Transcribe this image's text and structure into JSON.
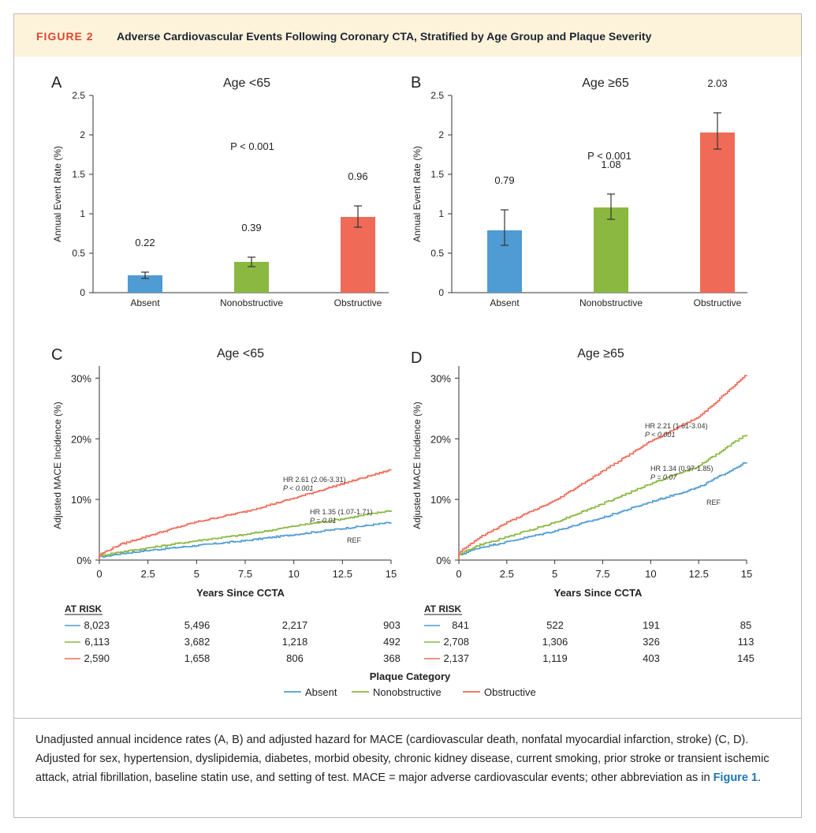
{
  "figure": {
    "label": "FIGURE 2",
    "title": "Adverse Cardiovascular Events Following Coronary CTA, Stratified by Age Group and Plaque Severity"
  },
  "caption": {
    "text": "Unadjusted annual incidence rates (A, B) and adjusted hazard for MACE (cardiovascular death, nonfatal myocardial infarction, stroke) (C, D). Adjusted for sex, hypertension, dyslipidemia, diabetes, morbid obesity, chronic kidney disease, current smoking, prior stroke or transient ischemic attack, atrial fibrillation, baseline statin use, and setting of test. MACE = major adverse cardiovascular events; other abbreviation as in ",
    "link": "Figure 1",
    "end": "."
  },
  "colors": {
    "absent": "#4f9bd3",
    "nonobstructive": "#8ab840",
    "obstructive": "#ef6a57"
  },
  "chart_data": [
    {
      "panel": "A",
      "type": "bar",
      "title": "Age <65",
      "ylabel": "Annual Event Rate (%)",
      "ylim": [
        0,
        2.5
      ],
      "yticks": [
        "0",
        "0.5",
        "1",
        "1.5",
        "2",
        "2.5"
      ],
      "categories": [
        "Absent",
        "Nonobstructive",
        "Obstructive"
      ],
      "values": [
        0.22,
        0.39,
        0.96
      ],
      "value_labels": [
        "0.22",
        "0.39",
        "0.96"
      ],
      "ci": [
        [
          0.18,
          0.26
        ],
        [
          0.33,
          0.45
        ],
        [
          0.83,
          1.1
        ]
      ],
      "pvalue": "P < 0.001"
    },
    {
      "panel": "B",
      "type": "bar",
      "title": "Age ≥65",
      "ylabel": "Annual Event Rate (%)",
      "ylim": [
        0,
        2.5
      ],
      "yticks": [
        "0",
        "0.5",
        "1",
        "1.5",
        "2",
        "2.5"
      ],
      "categories": [
        "Absent",
        "Nonobstructive",
        "Obstructive"
      ],
      "values": [
        0.79,
        1.08,
        2.03
      ],
      "value_labels": [
        "0.79",
        "1.08",
        "2.03"
      ],
      "ci": [
        [
          0.6,
          1.05
        ],
        [
          0.93,
          1.25
        ],
        [
          1.82,
          2.28
        ]
      ],
      "pvalue": "P < 0.001"
    },
    {
      "panel": "C",
      "type": "line",
      "title": "Age <65",
      "xlabel": "Years Since CCTA",
      "ylabel": "Adjusted MACE Incidence (%)",
      "xlim": [
        0,
        15
      ],
      "ylim": [
        0,
        32
      ],
      "xticks": [
        "0",
        "2.5",
        "5",
        "7.5",
        "10",
        "12.5",
        "15"
      ],
      "yticks": [
        "0%",
        "10%",
        "20%",
        "30%"
      ],
      "x": [
        0,
        1,
        2.5,
        5,
        7.5,
        10,
        12.5,
        15
      ],
      "series": [
        {
          "name": "Absent",
          "values": [
            0.5,
            1.0,
            1.6,
            2.4,
            3.2,
            4.2,
            5.2,
            6.2
          ],
          "annotation": [
            "REF"
          ]
        },
        {
          "name": "Nonobstructive",
          "values": [
            0.7,
            1.3,
            2.0,
            3.2,
            4.2,
            5.6,
            6.8,
            8.2
          ],
          "annotation": [
            "HR 1.35 (1.07-1.71)",
            "P = 0.01"
          ]
        },
        {
          "name": "Obstructive",
          "values": [
            0.9,
            2.5,
            4.0,
            6.3,
            8.0,
            10.2,
            12.6,
            14.9
          ],
          "annotation": [
            "HR 2.61 (2.06-3.31)",
            "P < 0.001"
          ]
        }
      ],
      "at_risk": {
        "header": "AT RISK",
        "rows": [
          {
            "name": "Absent",
            "values": [
              "8,023",
              "5,496",
              "2,217",
              "903"
            ]
          },
          {
            "name": "Nonobstructive",
            "values": [
              "6,113",
              "3,682",
              "1,218",
              "492"
            ]
          },
          {
            "name": "Obstructive",
            "values": [
              "2,590",
              "1,658",
              "806",
              "368"
            ]
          }
        ]
      }
    },
    {
      "panel": "D",
      "type": "line",
      "title": "Age ≥65",
      "xlabel": "Years Since CCTA",
      "ylabel": "Adjusted MACE Incidence (%)",
      "xlim": [
        0,
        15
      ],
      "ylim": [
        0,
        32
      ],
      "xticks": [
        "0",
        "2.5",
        "5",
        "7.5",
        "10",
        "12.5",
        "15"
      ],
      "yticks": [
        "0%",
        "10%",
        "20%",
        "30%"
      ],
      "x": [
        0,
        1,
        2.5,
        5,
        7.5,
        10,
        12.5,
        15
      ],
      "series": [
        {
          "name": "Absent",
          "values": [
            0.8,
            2.0,
            3.0,
            4.8,
            7.0,
            9.6,
            12.0,
            16.2
          ],
          "annotation": [
            "REF"
          ]
        },
        {
          "name": "Nonobstructive",
          "values": [
            1.0,
            2.4,
            3.8,
            6.2,
            9.3,
            12.6,
            15.5,
            20.8
          ],
          "annotation": [
            "HR 1.34 (0.97-1.85)",
            "P = 0.07"
          ]
        },
        {
          "name": "Obstructive",
          "values": [
            1.3,
            3.6,
            6.2,
            9.8,
            14.7,
            19.6,
            23.6,
            30.6
          ],
          "annotation": [
            "HR 2.21 (1.61-3.04)",
            "P < 0.001"
          ]
        }
      ],
      "at_risk": {
        "header": "AT RISK",
        "rows": [
          {
            "name": "Absent",
            "values": [
              "841",
              "522",
              "191",
              "85"
            ]
          },
          {
            "name": "Nonobstructive",
            "values": [
              "2,708",
              "1,306",
              "326",
              "113"
            ]
          },
          {
            "name": "Obstructive",
            "values": [
              "2,137",
              "1,119",
              "403",
              "145"
            ]
          }
        ]
      }
    }
  ],
  "legend": {
    "title": "Plaque Category",
    "items": [
      "Absent",
      "Nonobstructive",
      "Obstructive"
    ]
  }
}
